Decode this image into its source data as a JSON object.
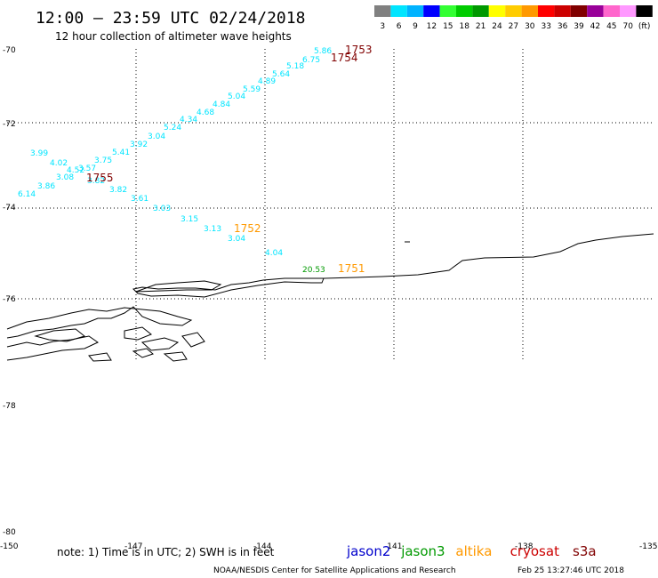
{
  "title": "12:00 – 23:59 UTC 02/24/2018",
  "subtitle": "12 hour collection of altimeter wave heights",
  "colorbar": {
    "colors": [
      "#808080",
      "#00e5ff",
      "#00b3ff",
      "#0000ff",
      "#33ff33",
      "#00cc00",
      "#009900",
      "#ffff00",
      "#ffcc00",
      "#ff9900",
      "#ff0000",
      "#cc0000",
      "#800000",
      "#990099",
      "#ff66cc",
      "#ff99ff",
      "#000000"
    ],
    "labels": [
      "3",
      "6",
      "9",
      "12",
      "15",
      "18",
      "21",
      "24",
      "27",
      "30",
      "33",
      "36",
      "39",
      "42",
      "45",
      "70",
      "(ft)"
    ]
  },
  "lat_labels": [
    "-70",
    "-72",
    "-74",
    "-76",
    "-78",
    "-80"
  ],
  "lon_labels": [
    "-150",
    "-147",
    "-144",
    "-141",
    "-138",
    "-135"
  ],
  "wave_heights": [
    {
      "v": "5.86",
      "c": "#00e5ff"
    },
    {
      "v": "6.75",
      "c": "#00e5ff"
    },
    {
      "v": "5.18",
      "c": "#00e5ff"
    },
    {
      "v": "5.64",
      "c": "#00e5ff"
    },
    {
      "v": "4.89",
      "c": "#00e5ff"
    },
    {
      "v": "5.59",
      "c": "#00e5ff"
    },
    {
      "v": "5.04",
      "c": "#00e5ff"
    },
    {
      "v": "4.84",
      "c": "#00e5ff"
    },
    {
      "v": "4.68",
      "c": "#00e5ff"
    },
    {
      "v": "4.34",
      "c": "#00e5ff"
    },
    {
      "v": "5.24",
      "c": "#00e5ff"
    },
    {
      "v": "3.04",
      "c": "#00e5ff"
    },
    {
      "v": "3.92",
      "c": "#00e5ff"
    },
    {
      "v": "5.41",
      "c": "#00e5ff"
    },
    {
      "v": "3.75",
      "c": "#00e5ff"
    },
    {
      "v": "3.99",
      "c": "#00e5ff"
    },
    {
      "v": "4.02",
      "c": "#00e5ff"
    },
    {
      "v": "4.52",
      "c": "#00e5ff"
    },
    {
      "v": "3.57",
      "c": "#00e5ff"
    },
    {
      "v": "3.08",
      "c": "#00e5ff"
    },
    {
      "v": "3.82",
      "c": "#00e5ff"
    },
    {
      "v": "3.86",
      "c": "#00e5ff"
    },
    {
      "v": "6.14",
      "c": "#00e5ff"
    },
    {
      "v": "3.82",
      "c": "#00e5ff"
    },
    {
      "v": "3.61",
      "c": "#00e5ff"
    },
    {
      "v": "3.03",
      "c": "#00e5ff"
    },
    {
      "v": "3.15",
      "c": "#00e5ff"
    },
    {
      "v": "3.13",
      "c": "#00e5ff"
    },
    {
      "v": "3.04",
      "c": "#00e5ff"
    },
    {
      "v": "4.04",
      "c": "#00e5ff"
    },
    {
      "v": "20.53",
      "c": "#009900"
    }
  ],
  "pass_labels": [
    {
      "t": "1753",
      "c": "#800000"
    },
    {
      "t": "1754",
      "c": "#800000"
    },
    {
      "t": "1755",
      "c": "#800000"
    },
    {
      "t": "1752",
      "c": "#ff9900"
    },
    {
      "t": "1751",
      "c": "#ff9900"
    }
  ],
  "note": "note: 1) Time is in UTC; 2) SWH is in feet",
  "legend": [
    {
      "name": "jason2",
      "color": "#0000cc"
    },
    {
      "name": "jason3",
      "color": "#009900"
    },
    {
      "name": "altika",
      "color": "#ff9900"
    },
    {
      "name": "cryosat",
      "color": "#cc0000"
    },
    {
      "name": "s3a",
      "color": "#800000"
    }
  ],
  "footer_left": "NOAA/NESDIS Center for Satellite Applications and Research",
  "footer_right": "Feb 25 13:27:46 UTC 2018"
}
